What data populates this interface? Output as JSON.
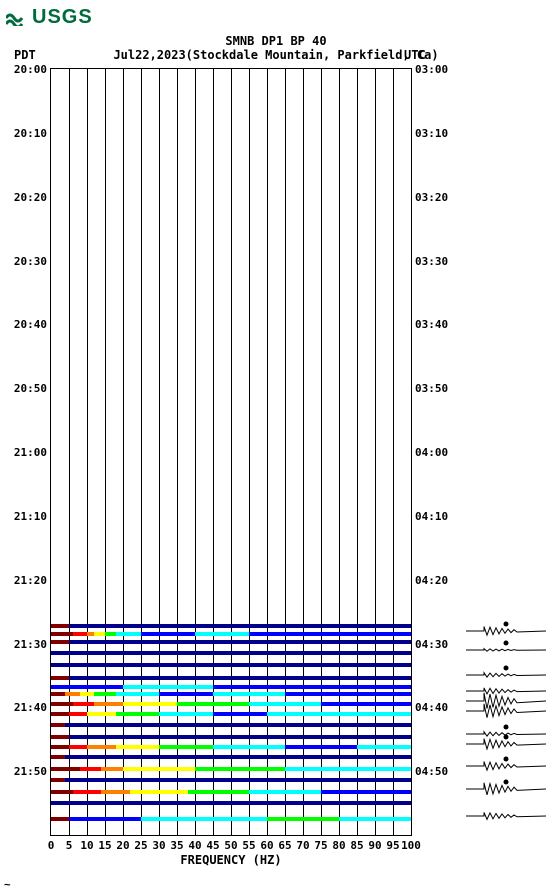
{
  "logo_text": "USGS",
  "title_line1": "SMNB DP1 BP 40",
  "title_line2": "Jul22,2023(Stockdale Mountain, Parkfield, Ca)",
  "pdt_label": "PDT",
  "utc_label": "UTC",
  "xlabel": "FREQUENCY (HZ)",
  "colors": {
    "logo": "#006b3f",
    "band_navy": "#00008b",
    "band_blue": "#0000ff",
    "band_cyan": "#00ffff",
    "band_green": "#00ff00",
    "band_yellow": "#ffff00",
    "band_orange": "#ff8000",
    "band_red": "#ff0000",
    "band_darkred": "#800000",
    "bg": "#ffffff"
  },
  "xaxis": {
    "min": 0,
    "max": 100,
    "ticks": [
      0,
      5,
      10,
      15,
      20,
      25,
      30,
      35,
      40,
      45,
      50,
      55,
      60,
      65,
      70,
      75,
      80,
      85,
      90,
      95,
      100
    ],
    "grid_step": 5
  },
  "yaxis_left": {
    "label": "PDT",
    "ticks": [
      {
        "t": "20:00",
        "f": 0.0
      },
      {
        "t": "20:10",
        "f": 0.0833
      },
      {
        "t": "20:20",
        "f": 0.1667
      },
      {
        "t": "20:30",
        "f": 0.25
      },
      {
        "t": "20:40",
        "f": 0.3333
      },
      {
        "t": "20:50",
        "f": 0.4167
      },
      {
        "t": "21:00",
        "f": 0.5
      },
      {
        "t": "21:10",
        "f": 0.5833
      },
      {
        "t": "21:20",
        "f": 0.6667
      },
      {
        "t": "21:30",
        "f": 0.75
      },
      {
        "t": "21:40",
        "f": 0.8333
      },
      {
        "t": "21:50",
        "f": 0.9167
      }
    ]
  },
  "yaxis_right": {
    "label": "UTC",
    "ticks": [
      {
        "t": "03:00",
        "f": 0.0
      },
      {
        "t": "03:10",
        "f": 0.0833
      },
      {
        "t": "03:20",
        "f": 0.1667
      },
      {
        "t": "03:30",
        "f": 0.25
      },
      {
        "t": "03:40",
        "f": 0.3333
      },
      {
        "t": "03:50",
        "f": 0.4167
      },
      {
        "t": "04:00",
        "f": 0.5
      },
      {
        "t": "04:10",
        "f": 0.5833
      },
      {
        "t": "04:20",
        "f": 0.6667
      },
      {
        "t": "04:30",
        "f": 0.75
      },
      {
        "t": "04:40",
        "f": 0.8333
      },
      {
        "t": "04:50",
        "f": 0.9167
      }
    ]
  },
  "strips": [
    {
      "y": 0.724,
      "segs": [
        [
          "darkred",
          0,
          5
        ],
        [
          "navy",
          5,
          100
        ]
      ]
    },
    {
      "y": 0.735,
      "segs": [
        [
          "darkred",
          0,
          6
        ],
        [
          "red",
          6,
          10
        ],
        [
          "orange",
          10,
          12
        ],
        [
          "yellow",
          12,
          15
        ],
        [
          "green",
          15,
          18
        ],
        [
          "cyan",
          18,
          25
        ],
        [
          "blue",
          25,
          40
        ],
        [
          "cyan",
          40,
          55
        ],
        [
          "blue",
          55,
          100
        ]
      ]
    },
    {
      "y": 0.745,
      "segs": [
        [
          "darkred",
          0,
          5
        ],
        [
          "navy",
          5,
          100
        ]
      ]
    },
    {
      "y": 0.76,
      "segs": [
        [
          "navy",
          0,
          100
        ]
      ]
    },
    {
      "y": 0.776,
      "segs": [
        [
          "navy",
          0,
          100
        ]
      ]
    },
    {
      "y": 0.792,
      "segs": [
        [
          "darkred",
          0,
          5
        ],
        [
          "navy",
          5,
          100
        ]
      ]
    },
    {
      "y": 0.804,
      "segs": [
        [
          "blue",
          0,
          20
        ],
        [
          "cyan",
          20,
          45
        ],
        [
          "blue",
          45,
          100
        ]
      ]
    },
    {
      "y": 0.813,
      "segs": [
        [
          "darkred",
          0,
          4
        ],
        [
          "orange",
          4,
          8
        ],
        [
          "yellow",
          8,
          12
        ],
        [
          "green",
          12,
          18
        ],
        [
          "cyan",
          18,
          30
        ],
        [
          "blue",
          30,
          45
        ],
        [
          "cyan",
          45,
          65
        ],
        [
          "blue",
          65,
          100
        ]
      ]
    },
    {
      "y": 0.826,
      "segs": [
        [
          "darkred",
          0,
          6
        ],
        [
          "red",
          6,
          12
        ],
        [
          "orange",
          12,
          20
        ],
        [
          "yellow",
          20,
          35
        ],
        [
          "green",
          35,
          55
        ],
        [
          "cyan",
          55,
          75
        ],
        [
          "blue",
          75,
          100
        ]
      ]
    },
    {
      "y": 0.839,
      "segs": [
        [
          "darkred",
          0,
          5
        ],
        [
          "red",
          5,
          10
        ],
        [
          "yellow",
          10,
          18
        ],
        [
          "green",
          18,
          30
        ],
        [
          "cyan",
          30,
          45
        ],
        [
          "blue",
          45,
          60
        ],
        [
          "cyan",
          60,
          100
        ]
      ]
    },
    {
      "y": 0.854,
      "segs": [
        [
          "darkred",
          0,
          4
        ],
        [
          "navy",
          4,
          100
        ]
      ]
    },
    {
      "y": 0.87,
      "segs": [
        [
          "darkred",
          0,
          5
        ],
        [
          "navy",
          5,
          100
        ]
      ]
    },
    {
      "y": 0.883,
      "segs": [
        [
          "darkred",
          0,
          5
        ],
        [
          "red",
          5,
          10
        ],
        [
          "orange",
          10,
          18
        ],
        [
          "yellow",
          18,
          30
        ],
        [
          "green",
          30,
          45
        ],
        [
          "cyan",
          45,
          65
        ],
        [
          "blue",
          65,
          85
        ],
        [
          "cyan",
          85,
          100
        ]
      ]
    },
    {
      "y": 0.896,
      "segs": [
        [
          "darkred",
          0,
          4
        ],
        [
          "navy",
          4,
          100
        ]
      ]
    },
    {
      "y": 0.911,
      "segs": [
        [
          "darkred",
          0,
          8
        ],
        [
          "red",
          8,
          14
        ],
        [
          "orange",
          14,
          20
        ],
        [
          "yellow",
          20,
          40
        ],
        [
          "green",
          40,
          65
        ],
        [
          "cyan",
          65,
          100
        ]
      ]
    },
    {
      "y": 0.925,
      "segs": [
        [
          "darkred",
          0,
          4
        ],
        [
          "navy",
          4,
          100
        ]
      ]
    },
    {
      "y": 0.941,
      "segs": [
        [
          "darkred",
          0,
          6
        ],
        [
          "red",
          6,
          14
        ],
        [
          "orange",
          14,
          22
        ],
        [
          "yellow",
          22,
          38
        ],
        [
          "green",
          38,
          55
        ],
        [
          "cyan",
          55,
          75
        ],
        [
          "blue",
          75,
          100
        ]
      ]
    },
    {
      "y": 0.956,
      "segs": [
        [
          "navy",
          0,
          100
        ]
      ]
    },
    {
      "y": 0.976,
      "segs": [
        [
          "darkred",
          0,
          5
        ],
        [
          "blue",
          5,
          25
        ],
        [
          "cyan",
          25,
          60
        ],
        [
          "green",
          60,
          80
        ],
        [
          "cyan",
          80,
          100
        ]
      ]
    }
  ],
  "waveforms": [
    {
      "y": 0.735,
      "amp": 0.5,
      "mark": true
    },
    {
      "y": 0.76,
      "amp": 0.15,
      "mark": true
    },
    {
      "y": 0.792,
      "amp": 0.25,
      "mark": true
    },
    {
      "y": 0.813,
      "amp": 0.35,
      "mark": false
    },
    {
      "y": 0.826,
      "amp": 0.9,
      "mark": false
    },
    {
      "y": 0.839,
      "amp": 0.8,
      "mark": false
    },
    {
      "y": 0.87,
      "amp": 0.25,
      "mark": true
    },
    {
      "y": 0.883,
      "amp": 0.6,
      "mark": true
    },
    {
      "y": 0.911,
      "amp": 0.5,
      "mark": true
    },
    {
      "y": 0.941,
      "amp": 0.7,
      "mark": true
    },
    {
      "y": 0.976,
      "amp": 0.4,
      "mark": false
    }
  ]
}
